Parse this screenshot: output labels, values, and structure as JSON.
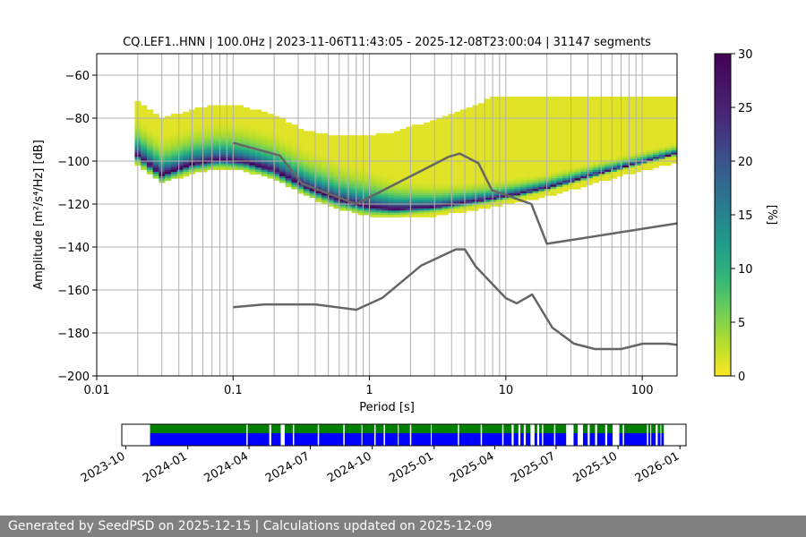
{
  "footer": {
    "text": "Generated by SeedPSD on 2025-12-15 | Calculations updated on 2025-12-09"
  },
  "chart_data": [
    {
      "type": "heatmap",
      "title": "CQ.LEF1..HNN | 100.0Hz | 2023-11-06T11:43:05 - 2025-12-08T23:00:04 | 31147 segments",
      "xlabel": "Period [s]",
      "ylabel": "Amplitude [m²/s⁴/Hz] [dB]",
      "xscale": "log",
      "xlim": [
        0.01,
        180
      ],
      "ylim": [
        -200,
        -50
      ],
      "xticks": [
        "0.01",
        "0.1",
        "1",
        "10",
        "100"
      ],
      "yticks": [
        "−60",
        "−80",
        "−100",
        "−120",
        "−140",
        "−160",
        "−180",
        "−200"
      ],
      "grid": true,
      "grid_periods": [
        0.02,
        0.03,
        0.04,
        0.05,
        0.06,
        0.07,
        0.08,
        0.09,
        0.1,
        0.2,
        0.3,
        0.4,
        0.5,
        0.6,
        0.7,
        0.8,
        0.9,
        1,
        2,
        3,
        4,
        5,
        6,
        7,
        8,
        9,
        10,
        20,
        30,
        40,
        50,
        60,
        70,
        80,
        90,
        100
      ],
      "colorbar": {
        "label": "[%]",
        "min": 0,
        "max": 30,
        "ticks": [
          "0",
          "5",
          "10",
          "15",
          "20",
          "25",
          "30"
        ],
        "colormap": "viridis_r"
      },
      "period_range_of_data": [
        0.019,
        180
      ],
      "mode_curve": {
        "x": [
          0.019,
          0.03,
          0.05,
          0.08,
          0.12,
          0.2,
          0.35,
          0.6,
          1.0,
          1.5,
          3,
          5,
          8,
          12,
          20,
          50,
          100,
          180
        ],
        "y": [
          -96,
          -106,
          -101,
          -99,
          -100,
          -104,
          -112,
          -118,
          -121,
          -122,
          -121,
          -119,
          -117,
          -115,
          -112,
          -105,
          -100,
          -96
        ]
      },
      "reference_models": [
        {
          "name": "high noise model",
          "color": "#666666",
          "x": [
            0.1,
            0.22,
            0.32,
            0.8,
            3.8,
            4.6,
            6.3,
            7.9,
            15.4,
            20,
            180
          ],
          "y": [
            -91.5,
            -97.4,
            -110.5,
            -120,
            -98.0,
            -96.5,
            -101,
            -113.5,
            -120,
            -138.5,
            -129
          ]
        },
        {
          "name": "low noise model",
          "color": "#666666",
          "x": [
            0.1,
            0.17,
            0.4,
            0.8,
            1.24,
            2.4,
            4.3,
            5.0,
            6.0,
            10.0,
            12.0,
            15.6,
            21.9,
            31.6,
            45.0,
            70.0,
            101,
            154,
            180
          ],
          "y": [
            -168,
            -166.7,
            -166.7,
            -169.2,
            -163.7,
            -148.6,
            -141.1,
            -141.1,
            -149,
            -163.8,
            -166.2,
            -162.1,
            -177.5,
            -185,
            -187.5,
            -187.5,
            -185,
            -185,
            -185.5
          ]
        }
      ]
    },
    {
      "type": "timeline",
      "xticks": [
        "2023-10",
        "2024-01",
        "2024-04",
        "2024-07",
        "2024-10",
        "2025-01",
        "2025-04",
        "2025-07",
        "2025-10",
        "2026-01"
      ],
      "xlim": [
        "2023-09-25",
        "2026-01-10"
      ],
      "data_start": "2023-11-06",
      "data_end": "2025-12-08",
      "series": [
        {
          "name": "data availability",
          "color": "#0000ff"
        },
        {
          "name": "psd availability",
          "color": "#008000"
        }
      ],
      "gaps": [
        [
          "2024-03-28",
          "2024-03-30"
        ],
        [
          "2024-05-01",
          "2024-05-04"
        ],
        [
          "2024-05-18",
          "2024-05-24"
        ],
        [
          "2024-06-05",
          "2024-06-07"
        ],
        [
          "2024-07-12",
          "2024-07-14"
        ],
        [
          "2024-08-19",
          "2024-08-21"
        ],
        [
          "2024-09-15",
          "2024-09-16"
        ],
        [
          "2024-10-04",
          "2024-10-06"
        ],
        [
          "2024-10-18",
          "2024-10-20"
        ],
        [
          "2024-11-08",
          "2024-11-09"
        ],
        [
          "2024-11-26",
          "2024-11-28"
        ],
        [
          "2024-12-27",
          "2024-12-28"
        ],
        [
          "2025-02-05",
          "2025-02-07"
        ],
        [
          "2025-03-11",
          "2025-03-13"
        ],
        [
          "2025-04-12",
          "2025-04-14"
        ],
        [
          "2025-04-26",
          "2025-04-29"
        ],
        [
          "2025-05-06",
          "2025-05-09"
        ],
        [
          "2025-05-14",
          "2025-05-17"
        ],
        [
          "2025-05-24",
          "2025-05-30"
        ],
        [
          "2025-06-03",
          "2025-06-06"
        ],
        [
          "2025-06-10",
          "2025-06-12"
        ],
        [
          "2025-06-28",
          "2025-06-30"
        ],
        [
          "2025-07-16",
          "2025-07-27"
        ],
        [
          "2025-08-02",
          "2025-08-10"
        ],
        [
          "2025-08-17",
          "2025-08-20"
        ],
        [
          "2025-08-28",
          "2025-08-31"
        ],
        [
          "2025-09-12",
          "2025-09-15"
        ],
        [
          "2025-09-23",
          "2025-10-03"
        ],
        [
          "2025-10-08",
          "2025-10-10"
        ],
        [
          "2025-11-13",
          "2025-11-15"
        ],
        [
          "2025-11-18",
          "2025-11-19"
        ],
        [
          "2025-11-26",
          "2025-11-29"
        ],
        [
          "2025-12-03",
          "2025-12-04"
        ]
      ]
    }
  ]
}
